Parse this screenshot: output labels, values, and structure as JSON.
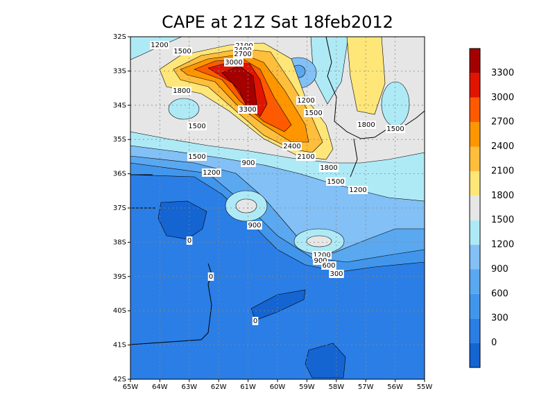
{
  "title": "CAPE at 21Z Sat 18feb2012",
  "map": {
    "xlim": [
      -65,
      -55
    ],
    "ylim": [
      -42,
      -32
    ],
    "xticks": [
      {
        "value": -65,
        "label": "65W"
      },
      {
        "value": -64,
        "label": "64W"
      },
      {
        "value": -63,
        "label": "63W"
      },
      {
        "value": -62,
        "label": "62W"
      },
      {
        "value": -61,
        "label": "61W"
      },
      {
        "value": -60,
        "label": "60W"
      },
      {
        "value": -59,
        "label": "59W"
      },
      {
        "value": -58,
        "label": "58W"
      },
      {
        "value": -57,
        "label": "57W"
      },
      {
        "value": -56,
        "label": "56W"
      },
      {
        "value": -55,
        "label": "55W"
      }
    ],
    "yticks": [
      {
        "value": -32,
        "label": "32S"
      },
      {
        "value": -33,
        "label": "33S"
      },
      {
        "value": -34,
        "label": "34S"
      },
      {
        "value": -35,
        "label": "35S"
      },
      {
        "value": -36,
        "label": "36S"
      },
      {
        "value": -37,
        "label": "37S"
      },
      {
        "value": -38,
        "label": "38S"
      },
      {
        "value": -39,
        "label": "39S"
      },
      {
        "value": -40,
        "label": "40S"
      },
      {
        "value": -41,
        "label": "41S"
      },
      {
        "value": -42,
        "label": "42S"
      }
    ],
    "grid": true
  },
  "colorbar": {
    "levels": [
      0,
      300,
      600,
      900,
      1200,
      1500,
      1800,
      2100,
      2400,
      2700,
      3000,
      3300
    ],
    "colors": [
      "#1464d2",
      "#2a7ee6",
      "#4196ec",
      "#5aa8f0",
      "#82c0f6",
      "#aeeaf6",
      "#e6e6e6",
      "#ffe678",
      "#ffbe3c",
      "#ff9600",
      "#ff5a00",
      "#e11400",
      "#a50000"
    ]
  },
  "contour_labels": [
    "1200",
    "1500",
    "1800",
    "2100",
    "2400",
    "2700",
    "3000",
    "3300",
    "2400",
    "2100",
    "1500",
    "1500",
    "1200",
    "900",
    "1800",
    "1500",
    "1200",
    "1200",
    "1500",
    "1800",
    "1500",
    "900",
    "1200",
    "900",
    "600",
    "300",
    "0",
    "0",
    "0"
  ]
}
